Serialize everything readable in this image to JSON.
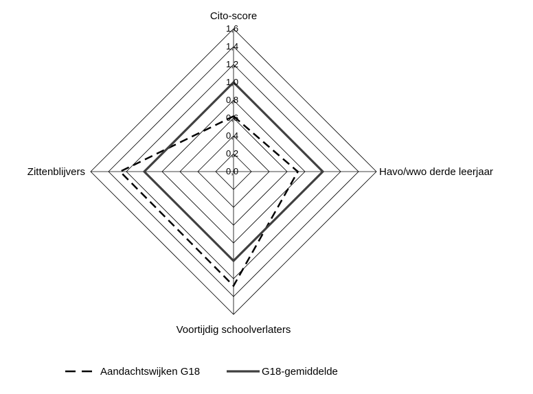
{
  "chart_data": {
    "type": "radar",
    "axes": [
      "Cito-score",
      "Havo/wwo derde leerjaar",
      "Voortijdig schoolverlaters",
      "Zittenblijvers"
    ],
    "ticks": [
      "0,0",
      "0,2",
      "0,4",
      "0,6",
      "0,8",
      "1,0",
      "1,2",
      "1,4",
      "1,6"
    ],
    "rlim": [
      0,
      1.6
    ],
    "grid": true,
    "legend_position": "bottom",
    "series": [
      {
        "name": "Aandachtswijken G18",
        "values": [
          0.62,
          0.72,
          1.28,
          1.27
        ],
        "color": "#000000",
        "style": "dashed"
      },
      {
        "name": "G18-gemiddelde",
        "values": [
          1.0,
          1.0,
          1.0,
          1.0
        ],
        "color": "#404040",
        "style": "solid"
      }
    ]
  }
}
